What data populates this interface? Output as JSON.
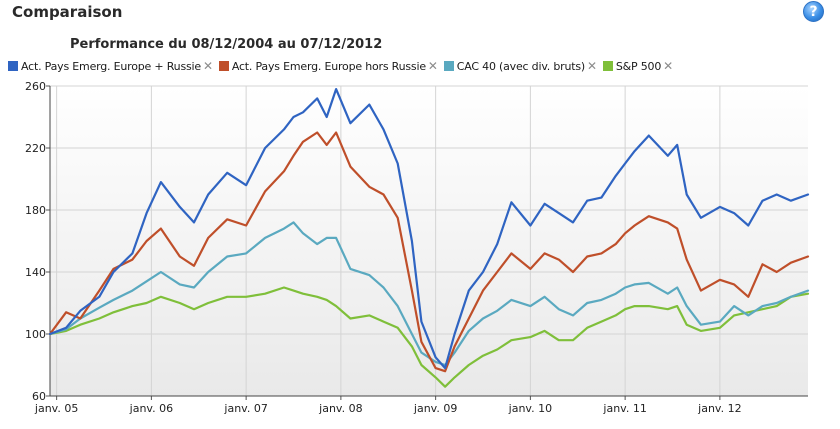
{
  "header": {
    "title": "Comparaison",
    "help_label": "?"
  },
  "chart_data": {
    "type": "line",
    "title": "Performance du 08/12/2004 au 07/12/2012",
    "xlabel": "",
    "ylabel": "",
    "ylim": [
      60,
      260
    ],
    "yticks": [
      60,
      100,
      140,
      180,
      220,
      260
    ],
    "xlim": [
      2004.93,
      2012.93
    ],
    "xticks": [
      {
        "x": 2005,
        "label": "janv. 05"
      },
      {
        "x": 2006,
        "label": "janv. 06"
      },
      {
        "x": 2007,
        "label": "janv. 07"
      },
      {
        "x": 2008,
        "label": "janv. 08"
      },
      {
        "x": 2009,
        "label": "janv. 09"
      },
      {
        "x": 2010,
        "label": "janv. 10"
      },
      {
        "x": 2011,
        "label": "janv. 11"
      },
      {
        "x": 2012,
        "label": "janv. 12"
      }
    ],
    "grid": true,
    "legend_position": "top-left",
    "series": [
      {
        "name": "Act. Pays Emerg. Europe + Russie",
        "color": "#2f64c2",
        "x": [
          2004.93,
          2005.1,
          2005.25,
          2005.45,
          2005.6,
          2005.8,
          2005.95,
          2006.1,
          2006.3,
          2006.45,
          2006.6,
          2006.8,
          2007.0,
          2007.2,
          2007.4,
          2007.5,
          2007.6,
          2007.75,
          2007.85,
          2007.95,
          2008.1,
          2008.3,
          2008.45,
          2008.6,
          2008.75,
          2008.85,
          2009.0,
          2009.1,
          2009.2,
          2009.35,
          2009.5,
          2009.65,
          2009.8,
          2010.0,
          2010.15,
          2010.3,
          2010.45,
          2010.6,
          2010.75,
          2010.9,
          2011.0,
          2011.1,
          2011.25,
          2011.45,
          2011.55,
          2011.65,
          2011.8,
          2012.0,
          2012.15,
          2012.3,
          2012.45,
          2012.6,
          2012.75,
          2012.93
        ],
        "values": [
          100,
          104,
          115,
          124,
          140,
          152,
          178,
          198,
          182,
          172,
          190,
          204,
          196,
          220,
          232,
          240,
          243,
          252,
          240,
          258,
          236,
          248,
          232,
          210,
          160,
          108,
          85,
          78,
          100,
          128,
          140,
          158,
          185,
          170,
          184,
          178,
          172,
          186,
          188,
          202,
          210,
          218,
          228,
          215,
          222,
          190,
          175,
          182,
          178,
          170,
          186,
          190,
          186,
          190
        ]
      },
      {
        "name": "Act. Pays Emerg. Europe hors Russie",
        "color": "#bf4f2a",
        "x": [
          2004.93,
          2005.1,
          2005.25,
          2005.45,
          2005.6,
          2005.8,
          2005.95,
          2006.1,
          2006.3,
          2006.45,
          2006.6,
          2006.8,
          2007.0,
          2007.2,
          2007.4,
          2007.5,
          2007.6,
          2007.75,
          2007.85,
          2007.95,
          2008.1,
          2008.3,
          2008.45,
          2008.6,
          2008.75,
          2008.85,
          2009.0,
          2009.1,
          2009.2,
          2009.35,
          2009.5,
          2009.65,
          2009.8,
          2010.0,
          2010.15,
          2010.3,
          2010.45,
          2010.6,
          2010.75,
          2010.9,
          2011.0,
          2011.1,
          2011.25,
          2011.45,
          2011.55,
          2011.65,
          2011.8,
          2012.0,
          2012.15,
          2012.3,
          2012.45,
          2012.6,
          2012.75,
          2012.93
        ],
        "values": [
          100,
          114,
          110,
          128,
          142,
          148,
          160,
          168,
          150,
          144,
          162,
          174,
          170,
          192,
          205,
          215,
          224,
          230,
          222,
          230,
          208,
          195,
          190,
          175,
          128,
          95,
          78,
          76,
          92,
          110,
          128,
          140,
          152,
          142,
          152,
          148,
          140,
          150,
          152,
          158,
          165,
          170,
          176,
          172,
          168,
          148,
          128,
          135,
          132,
          124,
          145,
          140,
          146,
          150
        ]
      },
      {
        "name": "CAC 40 (avec div. bruts)",
        "color": "#5aa9c0",
        "x": [
          2004.93,
          2005.1,
          2005.25,
          2005.45,
          2005.6,
          2005.8,
          2005.95,
          2006.1,
          2006.3,
          2006.45,
          2006.6,
          2006.8,
          2007.0,
          2007.2,
          2007.4,
          2007.5,
          2007.6,
          2007.75,
          2007.85,
          2007.95,
          2008.1,
          2008.3,
          2008.45,
          2008.6,
          2008.75,
          2008.85,
          2009.0,
          2009.1,
          2009.2,
          2009.35,
          2009.5,
          2009.65,
          2009.8,
          2010.0,
          2010.15,
          2010.3,
          2010.45,
          2010.6,
          2010.75,
          2010.9,
          2011.0,
          2011.1,
          2011.25,
          2011.45,
          2011.55,
          2011.65,
          2011.8,
          2012.0,
          2012.15,
          2012.3,
          2012.45,
          2012.6,
          2012.75,
          2012.93
        ],
        "values": [
          100,
          103,
          110,
          117,
          122,
          128,
          134,
          140,
          132,
          130,
          140,
          150,
          152,
          162,
          168,
          172,
          165,
          158,
          162,
          162,
          142,
          138,
          130,
          118,
          100,
          88,
          82,
          80,
          88,
          102,
          110,
          115,
          122,
          118,
          124,
          116,
          112,
          120,
          122,
          126,
          130,
          132,
          133,
          126,
          130,
          118,
          106,
          108,
          118,
          112,
          118,
          120,
          124,
          128
        ]
      },
      {
        "name": "S&P 500",
        "color": "#7fbf3a",
        "x": [
          2004.93,
          2005.1,
          2005.25,
          2005.45,
          2005.6,
          2005.8,
          2005.95,
          2006.1,
          2006.3,
          2006.45,
          2006.6,
          2006.8,
          2007.0,
          2007.2,
          2007.4,
          2007.5,
          2007.6,
          2007.75,
          2007.85,
          2007.95,
          2008.1,
          2008.3,
          2008.45,
          2008.6,
          2008.75,
          2008.85,
          2009.0,
          2009.1,
          2009.2,
          2009.35,
          2009.5,
          2009.65,
          2009.8,
          2010.0,
          2010.15,
          2010.3,
          2010.45,
          2010.6,
          2010.75,
          2010.9,
          2011.0,
          2011.1,
          2011.25,
          2011.45,
          2011.55,
          2011.65,
          2011.8,
          2012.0,
          2012.15,
          2012.3,
          2012.45,
          2012.6,
          2012.75,
          2012.93
        ],
        "values": [
          100,
          102,
          106,
          110,
          114,
          118,
          120,
          124,
          120,
          116,
          120,
          124,
          124,
          126,
          130,
          128,
          126,
          124,
          122,
          118,
          110,
          112,
          108,
          104,
          92,
          80,
          72,
          66,
          72,
          80,
          86,
          90,
          96,
          98,
          102,
          96,
          96,
          104,
          108,
          112,
          116,
          118,
          118,
          116,
          118,
          106,
          102,
          104,
          112,
          114,
          116,
          118,
          124,
          126
        ]
      }
    ]
  }
}
